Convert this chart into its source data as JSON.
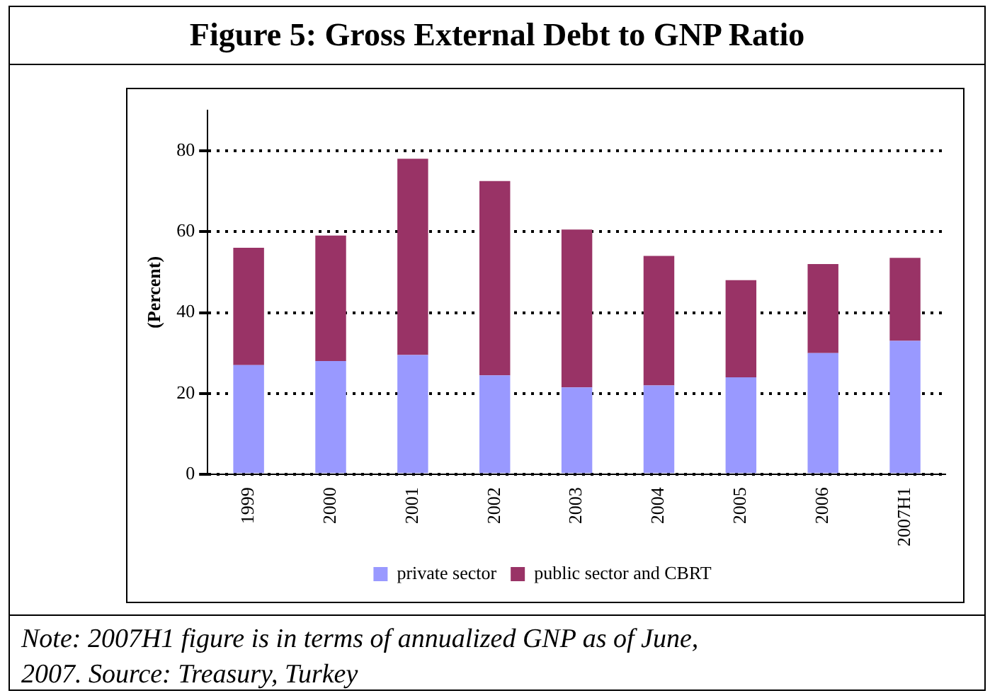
{
  "chart_data": {
    "type": "bar",
    "title": "Figure 5: Gross External Debt to GNP Ratio",
    "ylabel": "(Percent)",
    "categories": [
      "1999",
      "2000",
      "2001",
      "2002",
      "2003",
      "2004",
      "2005",
      "2006",
      "2007H1"
    ],
    "stacked": true,
    "series": [
      {
        "name": "private sector",
        "color": "#9999ff",
        "values": [
          27,
          28,
          29.5,
          24.5,
          21.5,
          22,
          24,
          30,
          33
        ]
      },
      {
        "name": "public sector and CBRT",
        "color": "#993366",
        "values": [
          29,
          31,
          48.5,
          48,
          39,
          32,
          24,
          22,
          20.5
        ]
      }
    ],
    "ylim": [
      0,
      90
    ],
    "yticks": [
      0,
      20,
      40,
      60,
      80
    ],
    "grid": "y",
    "legend": "bottom",
    "annotations": [
      "Note: 2007H1 figure is in terms of annualized GNP as of June, 2007. Source: Treasury, Turkey"
    ]
  }
}
